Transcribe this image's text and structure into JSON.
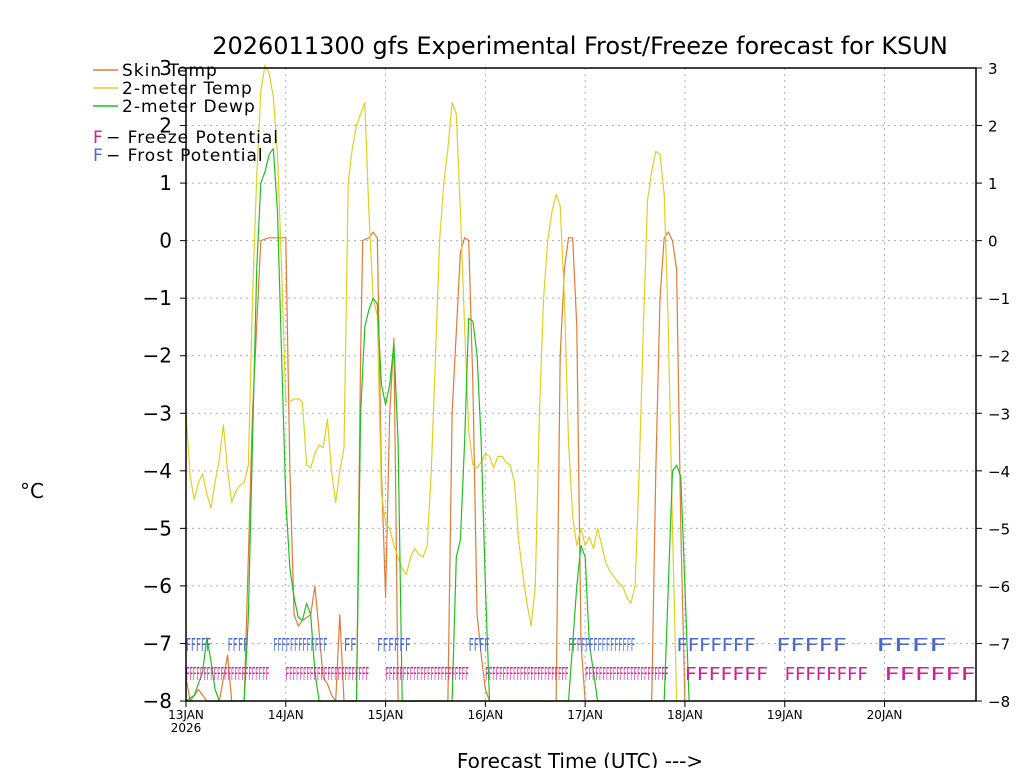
{
  "chart_data": {
    "type": "line",
    "title": "2026011300 gfs Experimental Frost/Freeze forecast for KSUN",
    "xlabel": "Forecast Time (UTC) --->",
    "ylabel": "°C",
    "ylim": [
      -8,
      3
    ],
    "yticks": [
      3,
      2,
      1,
      0,
      -1,
      -2,
      -3,
      -4,
      -5,
      -6,
      -7,
      -8
    ],
    "ytick_labels": [
      "3",
      "2",
      "1",
      "0",
      "−1",
      "−2",
      "−3",
      "−4",
      "−5",
      "−6",
      "−7",
      "−8"
    ],
    "xlim": [
      0,
      190
    ],
    "xticks": [
      {
        "x": 0,
        "label": "13JAN",
        "sub": "2026"
      },
      {
        "x": 24,
        "label": "14JAN",
        "sub": ""
      },
      {
        "x": 48,
        "label": "15JAN",
        "sub": ""
      },
      {
        "x": 72,
        "label": "16JAN",
        "sub": ""
      },
      {
        "x": 96,
        "label": "17JAN",
        "sub": ""
      },
      {
        "x": 120,
        "label": "18JAN",
        "sub": ""
      },
      {
        "x": 144,
        "label": "19JAN",
        "sub": ""
      },
      {
        "x": 168,
        "label": "20JAN",
        "sub": ""
      }
    ],
    "grid": true,
    "legend": [
      {
        "label": "Skin Temp",
        "color": "#e07b39"
      },
      {
        "label": "2-meter Temp",
        "color": "#e0d020"
      },
      {
        "label": "2-meter Dewp",
        "color": "#20c020"
      }
    ],
    "legend2": [
      {
        "letter": "F",
        "text": " − Freeze Potential",
        "color": "#d0209a"
      },
      {
        "letter": "F",
        "text": " − Frost Potential",
        "color": "#4a6ad0"
      }
    ],
    "series": [
      {
        "name": "Skin Temp",
        "color": "#e07b39",
        "points": [
          [
            0,
            -7.6
          ],
          [
            1,
            -8
          ],
          [
            3,
            -7.8
          ],
          [
            5,
            -8
          ],
          [
            8,
            -8
          ],
          [
            10,
            -7.2
          ],
          [
            11,
            -8
          ],
          [
            14,
            -8
          ],
          [
            16,
            -3.0
          ],
          [
            18,
            0.0
          ],
          [
            20,
            0.05
          ],
          [
            22,
            0.05
          ],
          [
            24,
            0.05
          ],
          [
            25,
            -4.0
          ],
          [
            26,
            -6.5
          ],
          [
            27,
            -6.7
          ],
          [
            28,
            -6.6
          ],
          [
            30,
            -6.5
          ],
          [
            31,
            -6.0
          ],
          [
            32,
            -6.8
          ],
          [
            33,
            -7.6
          ],
          [
            34,
            -7.7
          ],
          [
            35,
            -7.9
          ],
          [
            36,
            -8
          ],
          [
            37,
            -6.5
          ],
          [
            38,
            -8
          ],
          [
            41,
            -8
          ],
          [
            42,
            -2.0
          ],
          [
            42.5,
            0.0
          ],
          [
            44,
            0.05
          ],
          [
            45,
            0.15
          ],
          [
            46,
            0.05
          ],
          [
            47,
            -4.0
          ],
          [
            48,
            -6.2
          ],
          [
            49,
            -3.0
          ],
          [
            50,
            -1.7
          ],
          [
            51,
            -8
          ],
          [
            63,
            -8
          ],
          [
            64,
            -3.0
          ],
          [
            66,
            -0.2
          ],
          [
            67,
            0.05
          ],
          [
            68,
            0.0
          ],
          [
            69,
            -2.5
          ],
          [
            70,
            -6.5
          ],
          [
            71,
            -7.2
          ],
          [
            72,
            -7.8
          ],
          [
            73,
            -8
          ],
          [
            89,
            -8
          ],
          [
            90,
            -2.0
          ],
          [
            91,
            -0.5
          ],
          [
            92,
            0.05
          ],
          [
            93,
            0.05
          ],
          [
            94,
            -1.5
          ],
          [
            95,
            -7.0
          ],
          [
            96,
            -8
          ],
          [
            112,
            -8
          ],
          [
            113,
            -4.0
          ],
          [
            114,
            -1.0
          ],
          [
            115,
            0.05
          ],
          [
            116,
            0.15
          ],
          [
            117,
            0.0
          ],
          [
            118,
            -0.5
          ],
          [
            119,
            -5.0
          ],
          [
            120,
            -8
          ]
        ]
      },
      {
        "name": "2-meter Temp",
        "color": "#e0d020",
        "points": [
          [
            0,
            -3.0
          ],
          [
            1,
            -4.1
          ],
          [
            2,
            -4.5
          ],
          [
            3,
            -4.2
          ],
          [
            4,
            -4.05
          ],
          [
            5,
            -4.4
          ],
          [
            6,
            -4.65
          ],
          [
            7,
            -4.2
          ],
          [
            8,
            -3.8
          ],
          [
            9,
            -3.2
          ],
          [
            10,
            -4.0
          ],
          [
            11,
            -4.55
          ],
          [
            12,
            -4.35
          ],
          [
            13,
            -4.25
          ],
          [
            14,
            -4.2
          ],
          [
            15,
            -3.9
          ],
          [
            16,
            -1.0
          ],
          [
            17,
            1.1
          ],
          [
            18,
            2.6
          ],
          [
            19,
            3.05
          ],
          [
            20,
            2.9
          ],
          [
            21,
            2.5
          ],
          [
            22,
            1.5
          ],
          [
            23,
            -0.5
          ],
          [
            24,
            -2.8
          ],
          [
            25,
            -2.8
          ],
          [
            26,
            -2.75
          ],
          [
            27,
            -2.75
          ],
          [
            28,
            -2.8
          ],
          [
            29,
            -3.9
          ],
          [
            30,
            -3.95
          ],
          [
            31,
            -3.7
          ],
          [
            32,
            -3.55
          ],
          [
            33,
            -3.6
          ],
          [
            34,
            -3.1
          ],
          [
            35,
            -4.0
          ],
          [
            36,
            -4.55
          ],
          [
            37,
            -4.0
          ],
          [
            38,
            -3.6
          ],
          [
            39,
            1.0
          ],
          [
            40,
            1.6
          ],
          [
            41,
            2.0
          ],
          [
            42,
            2.2
          ],
          [
            43,
            2.4
          ],
          [
            44,
            0.5
          ],
          [
            45,
            -1.0
          ],
          [
            46,
            -1.3
          ],
          [
            47,
            -4.4
          ],
          [
            48,
            -4.9
          ],
          [
            49,
            -5.0
          ],
          [
            50,
            -5.3
          ],
          [
            51,
            -5.5
          ],
          [
            52,
            -5.7
          ],
          [
            53,
            -5.8
          ],
          [
            54,
            -5.5
          ],
          [
            55,
            -5.35
          ],
          [
            56,
            -5.45
          ],
          [
            57,
            -5.5
          ],
          [
            58,
            -5.3
          ],
          [
            59,
            -4.0
          ],
          [
            60,
            -2.0
          ],
          [
            61,
            0.0
          ],
          [
            62,
            1.0
          ],
          [
            63,
            1.6
          ],
          [
            64,
            2.4
          ],
          [
            65,
            2.2
          ],
          [
            66,
            0.5
          ],
          [
            67,
            -1.5
          ],
          [
            68,
            -3.3
          ],
          [
            69,
            -3.9
          ],
          [
            70,
            -3.95
          ],
          [
            71,
            -3.85
          ],
          [
            72,
            -3.7
          ],
          [
            73,
            -3.75
          ],
          [
            74,
            -3.95
          ],
          [
            75,
            -3.75
          ],
          [
            76,
            -3.75
          ],
          [
            77,
            -3.85
          ],
          [
            78,
            -3.9
          ],
          [
            79,
            -4.2
          ],
          [
            80,
            -5.2
          ],
          [
            81,
            -5.8
          ],
          [
            82,
            -6.3
          ],
          [
            83,
            -6.7
          ],
          [
            84,
            -6.0
          ],
          [
            85,
            -3.0
          ],
          [
            86,
            -1.0
          ],
          [
            87,
            0.0
          ],
          [
            88,
            0.5
          ],
          [
            89,
            0.8
          ],
          [
            90,
            0.6
          ],
          [
            91,
            -1.0
          ],
          [
            92,
            -3.5
          ],
          [
            93,
            -4.8
          ],
          [
            94,
            -5.3
          ],
          [
            95,
            -5.0
          ],
          [
            96,
            -5.3
          ],
          [
            97,
            -5.15
          ],
          [
            98,
            -5.35
          ],
          [
            99,
            -5.0
          ],
          [
            100,
            -5.3
          ],
          [
            101,
            -5.6
          ],
          [
            102,
            -5.75
          ],
          [
            103,
            -5.85
          ],
          [
            104,
            -5.95
          ],
          [
            105,
            -6.0
          ],
          [
            106,
            -6.2
          ],
          [
            107,
            -6.3
          ],
          [
            108,
            -6.0
          ],
          [
            109,
            -4.0
          ],
          [
            110,
            -1.5
          ],
          [
            111,
            0.7
          ],
          [
            112,
            1.2
          ],
          [
            113,
            1.55
          ],
          [
            114,
            1.5
          ],
          [
            115,
            0.8
          ],
          [
            116,
            -1.5
          ],
          [
            117,
            -5.0
          ],
          [
            118,
            -8
          ]
        ]
      },
      {
        "name": "2-meter Dewp",
        "color": "#20c020",
        "points": [
          [
            0,
            -8
          ],
          [
            2,
            -7.9
          ],
          [
            4,
            -7.5
          ],
          [
            5,
            -6.9
          ],
          [
            6,
            -7.3
          ],
          [
            7,
            -7.8
          ],
          [
            8,
            -8
          ],
          [
            14,
            -8
          ],
          [
            15,
            -6.5
          ],
          [
            16,
            -3.5
          ],
          [
            17,
            -0.5
          ],
          [
            18,
            1.0
          ],
          [
            19,
            1.2
          ],
          [
            20,
            1.5
          ],
          [
            21,
            1.6
          ],
          [
            22,
            0.5
          ],
          [
            23,
            -2.0
          ],
          [
            24,
            -4.5
          ],
          [
            25,
            -5.7
          ],
          [
            26,
            -6.2
          ],
          [
            27,
            -6.55
          ],
          [
            28,
            -6.6
          ],
          [
            29,
            -6.3
          ],
          [
            30,
            -6.5
          ],
          [
            31,
            -7.5
          ],
          [
            32,
            -8
          ],
          [
            41,
            -8
          ],
          [
            42,
            -3.0
          ],
          [
            43,
            -1.5
          ],
          [
            44,
            -1.2
          ],
          [
            45,
            -1.0
          ],
          [
            46,
            -1.1
          ],
          [
            47,
            -2.5
          ],
          [
            48,
            -2.85
          ],
          [
            49,
            -2.5
          ],
          [
            50,
            -1.8
          ],
          [
            51,
            -3.5
          ],
          [
            52,
            -8
          ],
          [
            64,
            -8
          ],
          [
            65,
            -5.5
          ],
          [
            66,
            -5.2
          ],
          [
            67,
            -3.5
          ],
          [
            68,
            -1.35
          ],
          [
            69,
            -1.4
          ],
          [
            70,
            -2.0
          ],
          [
            71,
            -3.5
          ],
          [
            72,
            -6.0
          ],
          [
            73,
            -8
          ],
          [
            92,
            -8
          ],
          [
            93,
            -7.0
          ],
          [
            94,
            -6.0
          ],
          [
            95,
            -5.3
          ],
          [
            96,
            -5.5
          ],
          [
            97,
            -7.0
          ],
          [
            98,
            -7.5
          ],
          [
            99,
            -8
          ],
          [
            115,
            -8
          ],
          [
            116,
            -6.0
          ],
          [
            117,
            -4.0
          ],
          [
            118,
            -3.9
          ],
          [
            119,
            -4.1
          ],
          [
            120,
            -6.0
          ],
          [
            121,
            -8
          ]
        ]
      }
    ],
    "frost_markers": [
      {
        "x0": 0,
        "x1": 6,
        "text": "FFFFF"
      },
      {
        "x0": 10,
        "x1": 15,
        "text": "FFFF"
      },
      {
        "x0": 21,
        "x1": 34,
        "text": "FFFFFFFFFFFFF"
      },
      {
        "x0": 38,
        "x1": 41,
        "text": "FF"
      },
      {
        "x0": 46,
        "x1": 54,
        "text": "FFFFFF"
      },
      {
        "x0": 68,
        "x1": 73,
        "text": "FFFF"
      },
      {
        "x0": 92,
        "x1": 108,
        "text": "FFFFFFFFFFFFFFFF"
      },
      {
        "x0": 118,
        "x1": 137,
        "text": "FFFFFFF"
      },
      {
        "x0": 142,
        "x1": 159,
        "text": "FFFFF"
      },
      {
        "x0": 166,
        "x1": 183,
        "text": "FFFF"
      }
    ],
    "freeze_markers": [
      {
        "x0": 0,
        "x1": 20,
        "text": "FFFFFFFFFFFFFFFFFFFFFFFF"
      },
      {
        "x0": 24,
        "x1": 44,
        "text": "FFFFFFFFFFFFFFFFFFFFFFFF"
      },
      {
        "x0": 48,
        "x1": 68,
        "text": "FFFFFFFFFFFFFFFFFFFFFFFF"
      },
      {
        "x0": 72,
        "x1": 92,
        "text": "FFFFFFFFFFFFFFFFFFFFFFFF"
      },
      {
        "x0": 96,
        "x1": 116,
        "text": "FFFFFFFFFFFFFFFFFFFFFFFF"
      },
      {
        "x0": 120,
        "x1": 140,
        "text": "FFFFFFF"
      },
      {
        "x0": 144,
        "x1": 164,
        "text": "FFFFFFFF"
      },
      {
        "x0": 168,
        "x1": 190,
        "text": "FFFFFF"
      }
    ]
  }
}
